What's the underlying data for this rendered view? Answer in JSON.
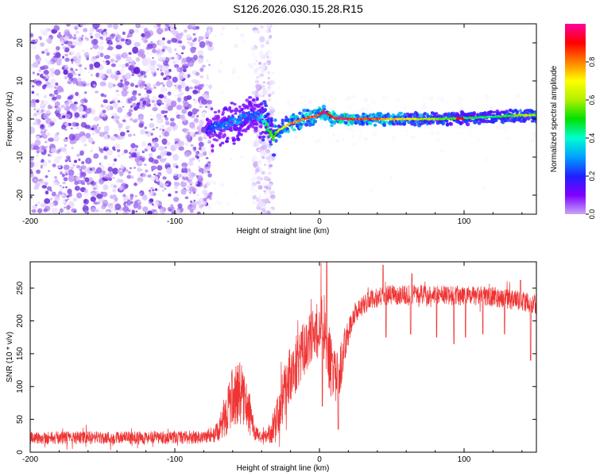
{
  "title": "S126.2026.030.15.28.R15",
  "colors": {
    "top_ramp": [
      "#ffffff",
      "#f3ecff",
      "#dcc8ff",
      "#b88cf4",
      "#8a4fe6",
      "#5a14d8"
    ],
    "snr_line": "#ef3434",
    "colorbar_stops": [
      "#c8a8f8",
      "#8000ff",
      "#2020ff",
      "#00a0ff",
      "#00ffd0",
      "#00e000",
      "#b0f000",
      "#ffff00",
      "#ff8000",
      "#ff0000",
      "#ff00a0"
    ]
  },
  "chart_data": [
    {
      "type": "heatmap",
      "xlabel": "Height of straight line (km)",
      "ylabel": "Frequency (Hz)",
      "xlim": [
        -200,
        150
      ],
      "ylim": [
        -25,
        25
      ],
      "xticks": [
        -200,
        -100,
        0,
        100
      ],
      "xtick_labels": [
        "-200",
        "-100",
        "0",
        "100"
      ],
      "yticks": [
        -20,
        -10,
        0,
        10,
        20
      ],
      "ytick_labels": [
        "-20",
        "-10",
        "0",
        "10",
        "20"
      ],
      "colorbar": {
        "label": "Normalized spectral amplitude",
        "range": [
          0,
          1
        ],
        "ticks": [
          0.0,
          0.2,
          0.4,
          0.6,
          0.8
        ],
        "tick_labels": [
          "0.0",
          "0.2",
          "0.4",
          "0.6",
          "0.8"
        ]
      },
      "ridge": {
        "x": [
          -78,
          -70,
          -62,
          -55,
          -50,
          -45,
          -40,
          -35,
          -32,
          -28,
          -22,
          -15,
          -8,
          -2,
          3,
          10,
          20,
          40,
          60,
          80,
          100,
          120,
          140,
          150
        ],
        "freq": [
          -3,
          -2,
          -1,
          0,
          0.5,
          1,
          0.5,
          -3,
          -4.5,
          -3,
          -1.5,
          -0.5,
          0.3,
          0.8,
          2,
          0.3,
          0,
          0,
          0,
          0,
          0.2,
          0.6,
          1,
          1
        ],
        "amp": [
          0.2,
          0.25,
          0.3,
          0.3,
          0.25,
          0.25,
          0.35,
          0.5,
          0.55,
          0.65,
          0.75,
          0.8,
          0.85,
          0.85,
          0.95,
          0.95,
          0.95,
          0.85,
          0.7,
          0.6,
          0.5,
          0.45,
          0.6,
          0.6
        ]
      },
      "noise": {
        "dense_region_x": [
          -200,
          -75
        ],
        "gap_region_x": [
          -75,
          -45
        ],
        "band_region_x": [
          -46,
          -32
        ],
        "sparse_region_x": [
          -32,
          150
        ]
      }
    },
    {
      "type": "line",
      "xlabel": "Height of straight line (km)",
      "ylabel": "SNR (10 * v/v)",
      "xlim": [
        -200,
        150
      ],
      "ylim": [
        0,
        290
      ],
      "xticks": [
        -200,
        -100,
        0,
        100
      ],
      "xtick_labels": [
        "-200",
        "-100",
        "0",
        "100"
      ],
      "yticks": [
        0,
        50,
        100,
        150,
        200,
        250
      ],
      "ytick_labels": [
        "0",
        "50",
        "100",
        "150",
        "200",
        "250"
      ],
      "series": [
        {
          "name": "SNR",
          "x": [
            -200,
            -150,
            -100,
            -80,
            -70,
            -62,
            -56,
            -50,
            -44,
            -40,
            -36,
            -30,
            -22,
            -15,
            -10,
            -5,
            0,
            3,
            6,
            10,
            14,
            18,
            25,
            35,
            50,
            80,
            100,
            120,
            140,
            150
          ],
          "base": [
            22,
            22,
            22,
            23,
            30,
            75,
            95,
            70,
            28,
            22,
            25,
            45,
            110,
            140,
            160,
            175,
            190,
            200,
            150,
            110,
            120,
            170,
            215,
            232,
            240,
            240,
            238,
            237,
            230,
            225
          ],
          "spread": [
            10,
            10,
            10,
            10,
            15,
            45,
            50,
            40,
            12,
            8,
            12,
            30,
            45,
            45,
            40,
            40,
            45,
            60,
            50,
            45,
            40,
            25,
            15,
            15,
            15,
            15,
            15,
            15,
            15,
            15
          ]
        }
      ],
      "dips": {
        "x": [
          2,
          9,
          13,
          46,
          63,
          81,
          93,
          101,
          113,
          128,
          146
        ],
        "min": [
          70,
          150,
          35,
          175,
          180,
          175,
          165,
          175,
          180,
          180,
          140
        ]
      },
      "spikes": {
        "x": [
          5,
          44,
          64,
          139
        ],
        "max": [
          290,
          285,
          272,
          262
        ]
      }
    }
  ]
}
